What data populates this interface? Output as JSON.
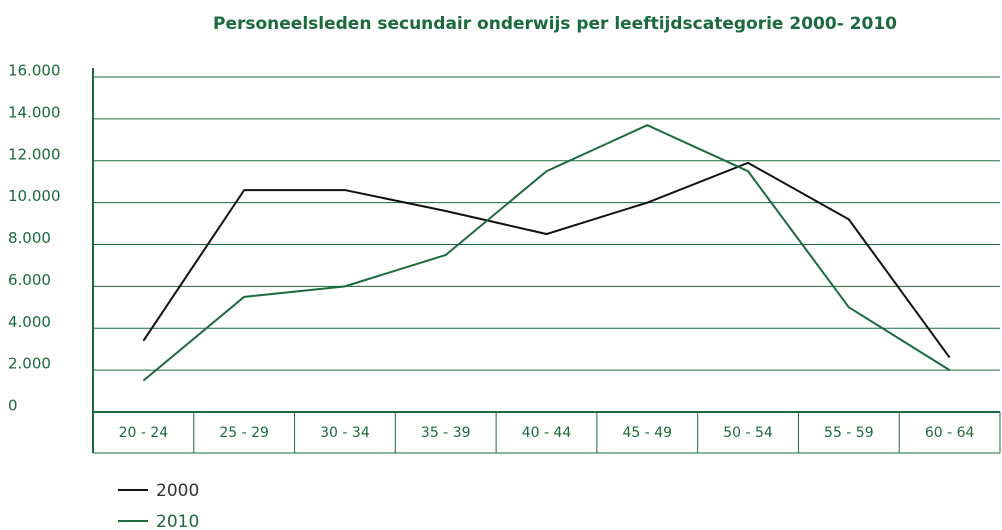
{
  "chart_data": {
    "type": "line",
    "title": "Personeelsleden secundair onderwijs per leeftijdscategorie 2000- 2010",
    "categories": [
      "20 - 24",
      "25 - 29",
      "30 - 34",
      "35 - 39",
      "40 - 44",
      "45 - 49",
      "50 - 54",
      "55 - 59",
      "60 - 64"
    ],
    "series": [
      {
        "name": "2000",
        "color": "#111111",
        "values": [
          3400,
          10600,
          10600,
          9600,
          8500,
          10000,
          11900,
          9200,
          2600
        ]
      },
      {
        "name": "2010",
        "color": "#1b6a3e",
        "values": [
          1500,
          5500,
          6000,
          7500,
          11500,
          13700,
          11500,
          5000,
          2000
        ]
      }
    ],
    "ylim": [
      0,
      16000
    ],
    "yticks": [
      0,
      {
        "value": 2000,
        "label": "2.000"
      },
      {
        "value": 4000,
        "label": "4.000"
      },
      {
        "value": 6000,
        "label": "6.000"
      },
      {
        "value": 8000,
        "label": "8.000"
      },
      {
        "value": 10000,
        "label": "10.000"
      },
      {
        "value": 12000,
        "label": "12.000"
      },
      {
        "value": 14000,
        "label": "14.000"
      },
      {
        "value": 16000,
        "label": "16.000"
      }
    ],
    "grid": true
  }
}
